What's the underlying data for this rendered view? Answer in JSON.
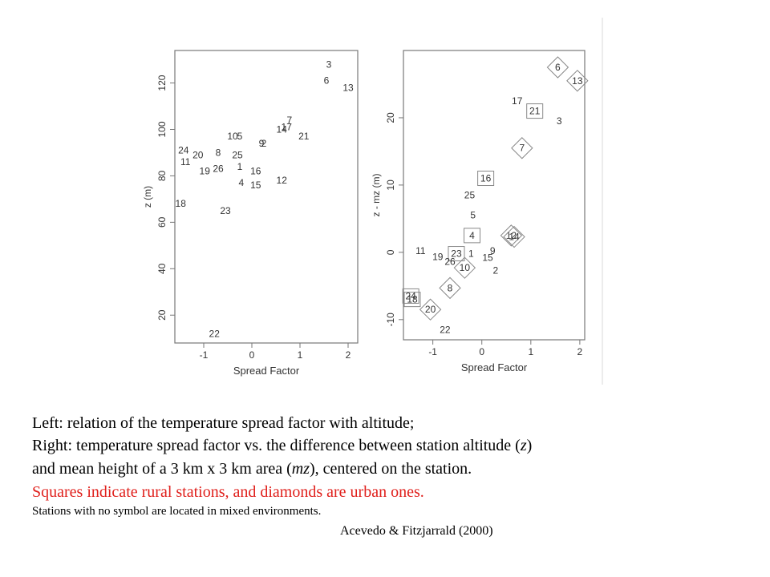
{
  "chart_data": [
    {
      "type": "scatter",
      "xlabel": "Spread Factor",
      "ylabel": "z (m)",
      "xlim": [
        -1.6,
        2.2
      ],
      "ylim": [
        8,
        134
      ],
      "xticks": [
        "-1",
        "0",
        "1",
        "2"
      ],
      "xtick_values": [
        -1,
        0,
        1,
        2
      ],
      "yticks": [
        "20",
        "40",
        "60",
        "80",
        "100",
        "120"
      ],
      "ytick_values": [
        20,
        40,
        60,
        80,
        100,
        120
      ],
      "points": [
        {
          "label": "3",
          "x": 1.6,
          "y": 128
        },
        {
          "label": "6",
          "x": 1.55,
          "y": 121
        },
        {
          "label": "13",
          "x": 2.0,
          "y": 118
        },
        {
          "label": "7",
          "x": 0.78,
          "y": 104
        },
        {
          "label": "14",
          "x": 0.62,
          "y": 100
        },
        {
          "label": "17",
          "x": 0.72,
          "y": 101
        },
        {
          "label": "10",
          "x": -0.4,
          "y": 97
        },
        {
          "label": "5",
          "x": -0.25,
          "y": 97
        },
        {
          "label": "21",
          "x": 1.08,
          "y": 97
        },
        {
          "label": "9",
          "x": 0.2,
          "y": 94
        },
        {
          "label": "2",
          "x": 0.25,
          "y": 94
        },
        {
          "label": "24",
          "x": -1.42,
          "y": 91
        },
        {
          "label": "20",
          "x": -1.12,
          "y": 89
        },
        {
          "label": "8",
          "x": -0.7,
          "y": 90
        },
        {
          "label": "25",
          "x": -0.3,
          "y": 89
        },
        {
          "label": "11",
          "x": -1.38,
          "y": 86
        },
        {
          "label": "1",
          "x": -0.25,
          "y": 84
        },
        {
          "label": "19",
          "x": -0.98,
          "y": 82
        },
        {
          "label": "26",
          "x": -0.7,
          "y": 83
        },
        {
          "label": "16",
          "x": 0.08,
          "y": 82
        },
        {
          "label": "12",
          "x": 0.62,
          "y": 78
        },
        {
          "label": "4",
          "x": -0.22,
          "y": 77
        },
        {
          "label": "15",
          "x": 0.08,
          "y": 76
        },
        {
          "label": "18",
          "x": -1.48,
          "y": 68
        },
        {
          "label": "23",
          "x": -0.55,
          "y": 65
        },
        {
          "label": "22",
          "x": -0.78,
          "y": 12
        }
      ]
    },
    {
      "type": "scatter",
      "xlabel": "Spread Factor",
      "ylabel": "z - mz (m)",
      "xlim": [
        -1.6,
        2.1
      ],
      "ylim": [
        -13,
        30
      ],
      "xticks": [
        "-1",
        "0",
        "1",
        "2"
      ],
      "xtick_values": [
        -1,
        0,
        1,
        2
      ],
      "yticks": [
        "-10",
        "0",
        "10",
        "20"
      ],
      "ytick_values": [
        -10,
        0,
        10,
        20
      ],
      "points": [
        {
          "label": "6",
          "x": 1.55,
          "y": 27.5,
          "marker": "diamond"
        },
        {
          "label": "13",
          "x": 1.95,
          "y": 25.5,
          "marker": "diamond"
        },
        {
          "label": "17",
          "x": 0.72,
          "y": 22.5,
          "marker": "none"
        },
        {
          "label": "21",
          "x": 1.08,
          "y": 21.0,
          "marker": "square"
        },
        {
          "label": "3",
          "x": 1.58,
          "y": 19.5,
          "marker": "none"
        },
        {
          "label": "7",
          "x": 0.82,
          "y": 15.5,
          "marker": "diamond"
        },
        {
          "label": "16",
          "x": 0.08,
          "y": 11.0,
          "marker": "square"
        },
        {
          "label": "25",
          "x": -0.25,
          "y": 8.5,
          "marker": "none"
        },
        {
          "label": "5",
          "x": -0.18,
          "y": 5.5,
          "marker": "none"
        },
        {
          "label": "4",
          "x": -0.2,
          "y": 2.5,
          "marker": "square"
        },
        {
          "label": "12",
          "x": 0.6,
          "y": 2.5,
          "marker": "diamond"
        },
        {
          "label": "14",
          "x": 0.66,
          "y": 2.3,
          "marker": "diamond"
        },
        {
          "label": "11",
          "x": -1.25,
          "y": 0.2,
          "marker": "none"
        },
        {
          "label": "19",
          "x": -0.9,
          "y": -0.7,
          "marker": "none"
        },
        {
          "label": "23",
          "x": -0.52,
          "y": -0.2,
          "marker": "square"
        },
        {
          "label": "1",
          "x": -0.22,
          "y": -0.2,
          "marker": "none"
        },
        {
          "label": "9",
          "x": 0.22,
          "y": 0.2,
          "marker": "none"
        },
        {
          "label": "15",
          "x": 0.12,
          "y": -0.8,
          "marker": "none"
        },
        {
          "label": "26",
          "x": -0.65,
          "y": -1.4,
          "marker": "none"
        },
        {
          "label": "10",
          "x": -0.35,
          "y": -2.3,
          "marker": "diamond"
        },
        {
          "label": "2",
          "x": 0.28,
          "y": -2.7,
          "marker": "none"
        },
        {
          "label": "8",
          "x": -0.65,
          "y": -5.3,
          "marker": "diamond"
        },
        {
          "label": "24",
          "x": -1.45,
          "y": -6.5,
          "marker": "square"
        },
        {
          "label": "18",
          "x": -1.42,
          "y": -7.0,
          "marker": "square"
        },
        {
          "label": "20",
          "x": -1.05,
          "y": -8.5,
          "marker": "diamond"
        },
        {
          "label": "22",
          "x": -0.75,
          "y": -11.5,
          "marker": "none"
        }
      ]
    }
  ],
  "caption": {
    "line1": "Left: relation of the temperature spread factor with altitude;",
    "line2_a": "Right:  temperature spread factor vs. the difference between station altitude (",
    "line2_var": "z",
    "line2_b": ")",
    "line3_a": "and mean height of a 3 km x 3 km area (",
    "line3_var": "mz",
    "line3_b": "), centered on the station.",
    "line4": "Squares indicate rural stations, and diamonds are urban ones.",
    "line5": "Stations with no symbol are located in mixed environments.",
    "citation": "Acevedo & Fitzjarrald (2000)"
  }
}
